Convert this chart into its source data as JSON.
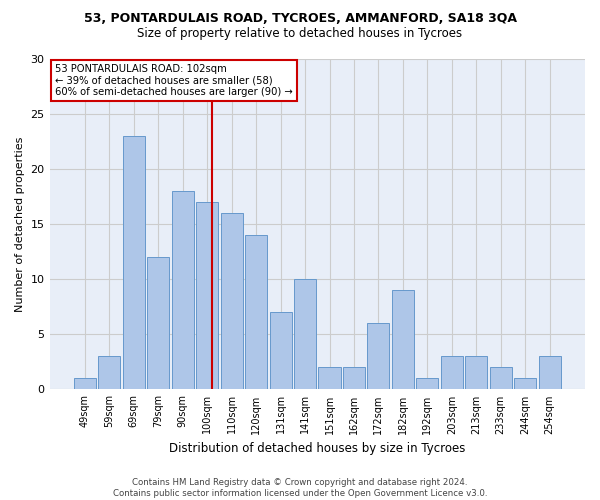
{
  "title": "53, PONTARDULAIS ROAD, TYCROES, AMMANFORD, SA18 3QA",
  "subtitle": "Size of property relative to detached houses in Tycroes",
  "xlabel": "Distribution of detached houses by size in Tycroes",
  "ylabel": "Number of detached properties",
  "categories": [
    "49sqm",
    "59sqm",
    "69sqm",
    "79sqm",
    "90sqm",
    "100sqm",
    "110sqm",
    "120sqm",
    "131sqm",
    "141sqm",
    "151sqm",
    "162sqm",
    "172sqm",
    "182sqm",
    "192sqm",
    "203sqm",
    "213sqm",
    "233sqm",
    "244sqm",
    "254sqm"
  ],
  "values": [
    1,
    3,
    23,
    12,
    18,
    17,
    16,
    14,
    7,
    10,
    2,
    2,
    6,
    9,
    1,
    3,
    3,
    2,
    1,
    3
  ],
  "bar_color": "#aec6e8",
  "bar_edge_color": "#6699cc",
  "annotation_text_line1": "53 PONTARDULAIS ROAD: 102sqm",
  "annotation_text_line2": "← 39% of detached houses are smaller (58)",
  "annotation_text_line3": "60% of semi-detached houses are larger (90) →",
  "annotation_box_color": "#ffffff",
  "annotation_box_edge": "#cc0000",
  "vline_color": "#cc0000",
  "ylim": [
    0,
    30
  ],
  "yticks": [
    0,
    5,
    10,
    15,
    20,
    25,
    30
  ],
  "grid_color": "#cccccc",
  "background_color": "#e8eef8",
  "footer_line1": "Contains HM Land Registry data © Crown copyright and database right 2024.",
  "footer_line2": "Contains public sector information licensed under the Open Government Licence v3.0."
}
